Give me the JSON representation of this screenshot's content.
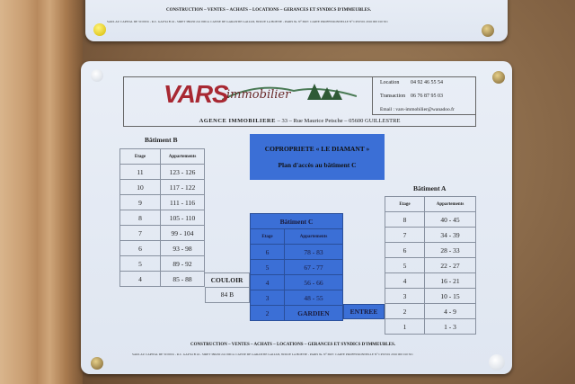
{
  "top_sign": {
    "services": "CONSTRUCTION – VENTES – ACHATS – LOCATIONS – GERANCES ET SYNDICS D'IMMEUBLES.",
    "legal": "SARL AU CAPITAL DE 50 000 € - R.C. GAP 94 B 24 - SIRET 386430 241 00014. CAISSE DE GARANTIE GALIAN, 89 RUE LA BOETIE - PARIS 8e. N° 6907. CARTE PROFESSIONNELLE N° CPI 0501 2016 000 010 501"
  },
  "header": {
    "logo_main": "VARS",
    "logo_sub": "immobilier",
    "location_label": "Location",
    "location_phone": "04 92 46 55 54",
    "transaction_label": "Transaction",
    "transaction_phone": "06 76 87 95 03",
    "email": "Email : vars-immobilier@wanadoo.fr",
    "agency": "AGENCE IMMOBILIERE",
    "address": " – 33 – Rue Maurice Petsche – 05600 GUILLESTRE"
  },
  "copro": {
    "title": "COPROPRIETE « LE DIAMANT »",
    "subtitle": "Plan d'accès au bâtiment C"
  },
  "columns": {
    "floor": "Etage",
    "apartments": "Appartements"
  },
  "building_b": {
    "title": "Bâtiment B",
    "rows": [
      [
        "11",
        "123 - 126"
      ],
      [
        "10",
        "117 - 122"
      ],
      [
        "9",
        "111 - 116"
      ],
      [
        "8",
        "105 - 110"
      ],
      [
        "7",
        "99 - 104"
      ],
      [
        "6",
        "93 - 98"
      ],
      [
        "5",
        "89 - 92"
      ],
      [
        "4",
        "85 - 88"
      ]
    ]
  },
  "corridor": {
    "label": "COULOIR",
    "apt": "84 B"
  },
  "building_c": {
    "title": "Bâtiment C",
    "rows": [
      [
        "6",
        "78 - 83"
      ],
      [
        "5",
        "67 - 77"
      ],
      [
        "4",
        "56 - 66"
      ],
      [
        "3",
        "48 - 55"
      ],
      [
        "2",
        "GARDIEN"
      ]
    ],
    "entrance": "ENTREE"
  },
  "building_a": {
    "title": "Bâtiment A",
    "rows": [
      [
        "8",
        "40 - 45"
      ],
      [
        "7",
        "34 - 39"
      ],
      [
        "6",
        "28 - 33"
      ],
      [
        "5",
        "22 - 27"
      ],
      [
        "4",
        "16 - 21"
      ],
      [
        "3",
        "10 - 15"
      ],
      [
        "2",
        "4 - 9"
      ],
      [
        "1",
        "1 - 3"
      ]
    ]
  },
  "footer": {
    "services": "CONSTRUCTION – VENTES – ACHATS – LOCATIONS – GERANCES ET SYNDICS D'IMMEUBLES.",
    "legal": "SARL AU CAPITAL DE 50 000 € - R.C. GAP 94 B 24 - SIRET 386430 241 00014. CAISSE DE GARANTIE GALIAN, 89 RUE LA BOETIE - PARIS 8e. N° 6907. CARTE PROFESSIONNELLE N° CPI 0501 2016 000 010 501"
  },
  "colors": {
    "blue_panel": "#3b6fd6",
    "logo_red": "#a82832",
    "logo_green": "#2f5a36"
  }
}
